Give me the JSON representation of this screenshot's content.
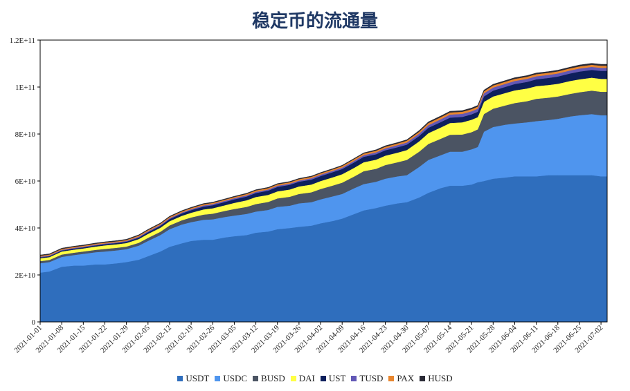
{
  "chart_data": {
    "type": "area",
    "stacked": true,
    "title": "稳定币的流通量",
    "xlabel": "",
    "ylabel": "",
    "ylim": [
      0,
      120000000000
    ],
    "y_ticks": [
      0,
      20000000000,
      40000000000,
      60000000000,
      80000000000,
      100000000000,
      120000000000
    ],
    "y_tick_labels": [
      "0",
      "2E+10",
      "4E+10",
      "6E+10",
      "8E+10",
      "1E+11",
      "1.2E+11"
    ],
    "x": [
      "2021-01-01",
      "2021-01-04",
      "2021-01-08",
      "2021-01-12",
      "2021-01-15",
      "2021-01-19",
      "2021-01-22",
      "2021-01-26",
      "2021-01-29",
      "2021-02-02",
      "2021-02-05",
      "2021-02-09",
      "2021-02-12",
      "2021-02-16",
      "2021-02-19",
      "2021-02-23",
      "2021-02-26",
      "2021-03-02",
      "2021-03-05",
      "2021-03-09",
      "2021-03-12",
      "2021-03-16",
      "2021-03-19",
      "2021-03-23",
      "2021-03-26",
      "2021-03-30",
      "2021-04-02",
      "2021-04-06",
      "2021-04-09",
      "2021-04-13",
      "2021-04-16",
      "2021-04-20",
      "2021-04-23",
      "2021-04-27",
      "2021-04-30",
      "2021-05-04",
      "2021-05-07",
      "2021-05-11",
      "2021-05-14",
      "2021-05-18",
      "2021-05-21",
      "2021-05-23",
      "2021-05-25",
      "2021-05-28",
      "2021-06-01",
      "2021-06-04",
      "2021-06-08",
      "2021-06-11",
      "2021-06-15",
      "2021-06-18",
      "2021-06-22",
      "2021-06-25",
      "2021-06-29",
      "2021-07-02",
      "2021-07-04"
    ],
    "x_tick_labels": [
      "2021-01-01",
      "2021-01-08",
      "2021-01-15",
      "2021-01-22",
      "2021-01-29",
      "2021-02-05",
      "2021-02-12",
      "2021-02-19",
      "2021-02-26",
      "2021-03-05",
      "2021-03-12",
      "2021-03-19",
      "2021-03-26",
      "2021-04-02",
      "2021-04-09",
      "2021-04-16",
      "2021-04-23",
      "2021-04-30",
      "2021-05-07",
      "2021-05-14",
      "2021-05-21",
      "2021-05-28",
      "2021-06-04",
      "2021-06-11",
      "2021-06-18",
      "2021-06-25",
      "2021-07-02"
    ],
    "legend_position": "bottom",
    "grid": false,
    "series": [
      {
        "name": "USDT",
        "color": "#2f6ebd",
        "values": [
          21,
          21.5,
          23.5,
          24,
          24,
          24.5,
          24.5,
          25,
          25.5,
          26.5,
          28,
          30,
          32,
          33.5,
          34.5,
          35,
          35,
          36,
          36.5,
          37,
          38,
          38.5,
          39.5,
          40,
          40.5,
          41,
          42,
          43,
          44,
          46,
          47.5,
          48.5,
          49.5,
          50.5,
          51,
          53,
          55,
          57,
          58,
          58,
          58.5,
          59.5,
          60,
          61,
          61.5,
          62,
          62,
          62,
          62.5,
          62.5,
          62.5,
          62.5,
          62.5,
          62,
          62
        ]
      },
      {
        "name": "USDC",
        "color": "#4f95ee",
        "values": [
          4,
          4,
          4.2,
          4.5,
          5,
          5.2,
          5.5,
          5.5,
          5.5,
          6,
          6.5,
          7,
          7.5,
          8,
          8,
          8.5,
          8.7,
          8.7,
          8.8,
          9,
          9,
          9.2,
          9.5,
          9.5,
          10,
          10,
          10.2,
          10.5,
          10.5,
          11,
          11.2,
          11.2,
          11.5,
          11.5,
          11.5,
          13,
          14,
          14,
          14.5,
          14.5,
          15,
          15,
          21,
          22,
          22.5,
          22.5,
          23,
          23.5,
          23.5,
          24,
          25,
          25.5,
          26,
          26,
          26
        ]
      },
      {
        "name": "BUSD",
        "color": "#4b5463",
        "values": [
          0.9,
          0.9,
          1,
          1,
          1,
          1,
          1.1,
          1.1,
          1.1,
          1.2,
          1.3,
          1.4,
          1.6,
          1.8,
          2,
          2.2,
          2.4,
          2.6,
          2.8,
          3,
          3.2,
          3.4,
          3.6,
          3.8,
          4,
          4.2,
          4.4,
          4.6,
          4.8,
          5,
          5.5,
          5.5,
          5.8,
          6,
          6.5,
          6.5,
          6.8,
          7,
          7.2,
          7.3,
          7.3,
          7.5,
          7.5,
          7.8,
          8.2,
          8.7,
          9,
          9.5,
          9.5,
          9.5,
          9.6,
          9.8,
          10,
          10,
          10
        ]
      },
      {
        "name": "DAI",
        "color": "#ffff44",
        "values": [
          1.2,
          1.2,
          1.3,
          1.3,
          1.3,
          1.4,
          1.5,
          1.5,
          1.5,
          1.6,
          1.7,
          1.7,
          1.8,
          1.9,
          2,
          2.2,
          2.3,
          2.4,
          2.6,
          2.8,
          3,
          3,
          3,
          3.1,
          3.2,
          3.3,
          3.4,
          3.5,
          3.6,
          3.7,
          3.8,
          3.9,
          4,
          4.1,
          4.2,
          4.4,
          4.6,
          4.8,
          5,
          5.2,
          5.3,
          5.2,
          5.2,
          5.2,
          5.3,
          5.4,
          5.4,
          5.4,
          5.4,
          5.4,
          5.5,
          5.5,
          5.5,
          5.5,
          5.5
        ]
      },
      {
        "name": "UST",
        "color": "#0d1f5c",
        "values": [
          0.4,
          0.4,
          0.4,
          0.45,
          0.45,
          0.5,
          0.5,
          0.55,
          0.6,
          0.6,
          0.7,
          0.8,
          0.9,
          1,
          1.1,
          1.2,
          1.3,
          1.4,
          1.5,
          1.6,
          1.7,
          1.8,
          1.9,
          2,
          2,
          2.1,
          2.1,
          2.2,
          2.2,
          2.3,
          2.3,
          2.3,
          2.3,
          2.3,
          2.3,
          2.3,
          2.3,
          2.3,
          2.3,
          2.3,
          2.3,
          2.3,
          2.3,
          2.5,
          2.6,
          2.7,
          2.8,
          2.9,
          3,
          3.1,
          3.2,
          3.3,
          3.3,
          3.4,
          3.4
        ]
      },
      {
        "name": "TUSD",
        "color": "#6258b6",
        "values": [
          0.3,
          0.3,
          0.3,
          0.3,
          0.3,
          0.3,
          0.3,
          0.3,
          0.3,
          0.4,
          0.4,
          0.4,
          0.4,
          0.4,
          0.4,
          0.5,
          0.5,
          0.5,
          0.5,
          0.5,
          0.5,
          0.5,
          0.5,
          0.5,
          0.5,
          0.6,
          0.6,
          0.6,
          0.6,
          0.7,
          0.7,
          0.8,
          0.8,
          0.9,
          0.9,
          1,
          1.1,
          1.2,
          1.3,
          1.3,
          1.3,
          1.3,
          1.3,
          1.3,
          1.3,
          1.3,
          1.3,
          1.3,
          1.3,
          1.3,
          1.3,
          1.3,
          1.3,
          1.3,
          1.3
        ]
      },
      {
        "name": "PAX",
        "color": "#e8862f",
        "values": [
          0.4,
          0.4,
          0.4,
          0.4,
          0.4,
          0.4,
          0.4,
          0.4,
          0.4,
          0.5,
          0.5,
          0.5,
          0.5,
          0.5,
          0.5,
          0.5,
          0.5,
          0.5,
          0.5,
          0.6,
          0.6,
          0.6,
          0.6,
          0.6,
          0.6,
          0.6,
          0.6,
          0.6,
          0.7,
          0.7,
          0.7,
          0.7,
          0.7,
          0.7,
          0.8,
          0.8,
          0.9,
          0.9,
          0.9,
          0.9,
          0.9,
          0.9,
          0.9,
          0.9,
          0.9,
          0.9,
          0.9,
          0.9,
          0.9,
          0.9,
          0.9,
          0.9,
          0.9,
          0.9,
          0.9
        ]
      },
      {
        "name": "HUSD",
        "color": "#2a2a35",
        "values": [
          0.3,
          0.3,
          0.3,
          0.3,
          0.3,
          0.3,
          0.3,
          0.3,
          0.3,
          0.3,
          0.3,
          0.3,
          0.3,
          0.3,
          0.3,
          0.3,
          0.3,
          0.3,
          0.3,
          0.3,
          0.3,
          0.3,
          0.3,
          0.3,
          0.3,
          0.3,
          0.3,
          0.3,
          0.3,
          0.3,
          0.3,
          0.4,
          0.4,
          0.4,
          0.4,
          0.5,
          0.5,
          0.5,
          0.5,
          0.5,
          0.5,
          0.5,
          0.5,
          0.5,
          0.5,
          0.5,
          0.5,
          0.5,
          0.5,
          0.5,
          0.5,
          0.6,
          0.6,
          0.6,
          0.6
        ]
      }
    ],
    "value_unit_multiplier": 1000000000
  }
}
